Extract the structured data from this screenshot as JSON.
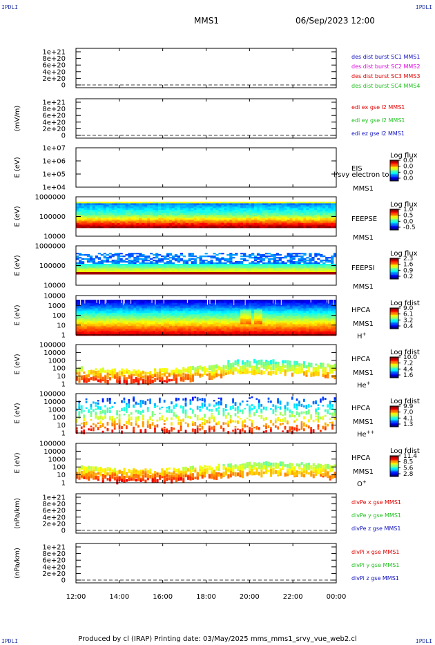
{
  "corners": {
    "tl": "IPDLI",
    "tr": "IPDLI",
    "bl": "IPDLI",
    "br": "IPDLI"
  },
  "header": {
    "spacecraft": "MMS1",
    "date": "06/Sep/2023 12:00"
  },
  "footer": "Produced by cl (IRAP)   Printing date: 03/May/2025   mms_mms1_srvy_vue_web2.cl",
  "colors": {
    "red": "#e00000",
    "green": "#20c020",
    "blue": "#1010c0",
    "magenta": "#e000e0",
    "orange": "#f08000",
    "label_blue": "#1c2fa0"
  },
  "chart_data": {
    "type": "multi-panel time series / spectrogram",
    "x_ticks": [
      "12:00",
      "14:00",
      "16:00",
      "18:00",
      "20:00",
      "22:00",
      "00:00"
    ],
    "panels": [
      {
        "id": "p1",
        "type": "line",
        "ylabel": "",
        "yticks": [
          "1e+21",
          "8e+20",
          "6e+20",
          "4e+20",
          "2e+20",
          "0"
        ],
        "legend": [
          {
            "text": "des dist burst SC1 MMS1",
            "color": "blue"
          },
          {
            "text": "des dist burst SC2 MMS2",
            "color": "magenta"
          },
          {
            "text": "des dist burst SC3 MMS3",
            "color": "red"
          },
          {
            "text": "des dist burst SC4 MMS4",
            "color": "green"
          }
        ]
      },
      {
        "id": "p2",
        "type": "line",
        "ylabel": "(mV/m)",
        "yticks": [
          "1e+21",
          "8e+20",
          "6e+20",
          "4e+20",
          "2e+20",
          "0"
        ],
        "legend": [
          {
            "text": "edi ex gse l2 MMS1",
            "color": "red"
          },
          {
            "text": "edi ey gse l2 MMS1",
            "color": "green"
          },
          {
            "text": "edi ez gse l2 MMS1",
            "color": "blue"
          }
        ]
      },
      {
        "id": "p3",
        "type": "spectrogram",
        "ylabel": "E (eV)",
        "yticks": [
          "1e+07",
          "1e+06",
          "1e+05",
          "1e+04"
        ],
        "right_labels": [
          "EIS",
          "MMS1"
        ],
        "overlay": "l/svy electron to",
        "cbar_title": "Log flux",
        "cbar_ticks": [
          "0.0",
          "0.0",
          "0.0",
          "0.0"
        ],
        "fill": "empty"
      },
      {
        "id": "p4",
        "type": "spectrogram",
        "ylabel": "E (eV)",
        "yticks": [
          "1000000",
          "100000",
          "10000"
        ],
        "right_labels": [
          "FEEPSE",
          "MMS1"
        ],
        "cbar_title": "Log flux",
        "cbar_ticks": [
          "1.0",
          "0.5",
          "0.0",
          "-0.5"
        ],
        "fill": "feeps_e"
      },
      {
        "id": "p5",
        "type": "spectrogram",
        "ylabel": "E (eV)",
        "yticks": [
          "1000000",
          "100000",
          "10000"
        ],
        "right_labels": [
          "FEEPSI",
          "MMS1"
        ],
        "cbar_title": "Log flux",
        "cbar_ticks": [
          "2.3",
          "1.6",
          "0.9",
          "0.2"
        ],
        "fill": "feeps_i"
      },
      {
        "id": "p6",
        "type": "spectrogram",
        "ylabel": "E (eV)",
        "yticks": [
          "10000",
          "1000",
          "100",
          "10",
          "1"
        ],
        "right_labels": [
          "HPCA",
          "MMS1"
        ],
        "species": "H",
        "species_sup": "+",
        "cbar_title": "Log fdist",
        "cbar_ticks": [
          "9.0",
          "6.1",
          "3.2",
          "0.4"
        ],
        "fill": "hplus"
      },
      {
        "id": "p7",
        "type": "spectrogram",
        "ylabel": "E (eV)",
        "yticks": [
          "100000",
          "10000",
          "1000",
          "100",
          "10",
          "1"
        ],
        "right_labels": [
          "HPCA",
          "MMS1"
        ],
        "species": "He",
        "species_sup": "+",
        "cbar_title": "Log fdist",
        "cbar_ticks": [
          "10.0",
          "7.2",
          "4.4",
          "1.6"
        ],
        "fill": "heplus"
      },
      {
        "id": "p8",
        "type": "spectrogram",
        "ylabel": "E (eV)",
        "yticks": [
          "100000",
          "10000",
          "1000",
          "100",
          "10",
          "1"
        ],
        "right_labels": [
          "HPCA",
          "MMS1"
        ],
        "species": "He",
        "species_sup": "++",
        "cbar_title": "Log fdist",
        "cbar_ticks": [
          "9.9",
          "7.0",
          "4.1",
          "1.3"
        ],
        "fill": "hepp"
      },
      {
        "id": "p9",
        "type": "spectrogram",
        "ylabel": "E (eV)",
        "yticks": [
          "100000",
          "10000",
          "1000",
          "100",
          "10",
          "1"
        ],
        "right_labels": [
          "HPCA",
          "MMS1"
        ],
        "species": "O",
        "species_sup": "+",
        "cbar_title": "Log fdist",
        "cbar_ticks": [
          "11.4",
          "8.5",
          "5.6",
          "2.8"
        ],
        "fill": "oplus"
      },
      {
        "id": "p10",
        "type": "line",
        "ylabel": "(nPa/km)",
        "yticks": [
          "1e+21",
          "8e+20",
          "6e+20",
          "4e+20",
          "2e+20",
          "0"
        ],
        "legend": [
          {
            "text": "divPe x gse MMS1",
            "color": "red"
          },
          {
            "text": "divPe y gse MMS1",
            "color": "green"
          },
          {
            "text": "divPe z gse MMS1",
            "color": "blue"
          }
        ]
      },
      {
        "id": "p11",
        "type": "line",
        "ylabel": "(nPa/km)",
        "yticks": [
          "1e+21",
          "8e+20",
          "6e+20",
          "4e+20",
          "2e+20",
          "0"
        ],
        "legend": [
          {
            "text": "divPi x gse MMS1",
            "color": "red"
          },
          {
            "text": "divPi y gse MMS1",
            "color": "green"
          },
          {
            "text": "divPi z gse MMS1",
            "color": "blue"
          }
        ]
      }
    ]
  }
}
